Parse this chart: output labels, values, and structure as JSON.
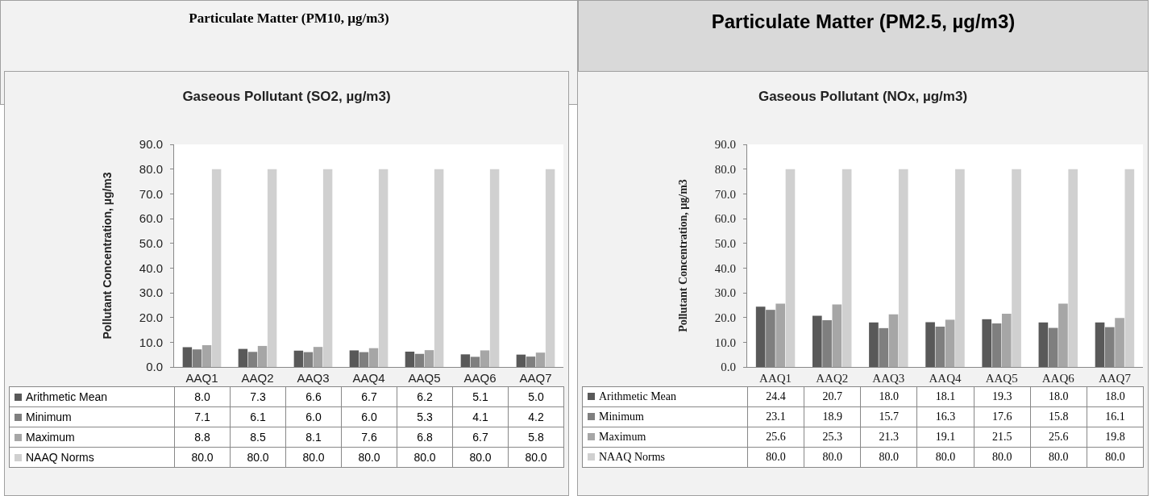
{
  "chart_data": [
    {
      "type": "other",
      "title": "Particulate Matter (PM10, µg/m3)"
    },
    {
      "type": "other",
      "title": "Particulate Matter (PM2.5, µg/m3)"
    },
    {
      "type": "bar",
      "title": "Gaseous Pollutant (SO2, µg/m3)",
      "ylabel": "Pollutant Concentration, µg/m3",
      "categories": [
        "AAQ1",
        "AAQ2",
        "AAQ3",
        "AAQ4",
        "AAQ5",
        "AAQ6",
        "AAQ7"
      ],
      "series": [
        {
          "name": "Arithmetic Mean",
          "color": "#595959",
          "values": [
            8.0,
            7.3,
            6.6,
            6.7,
            6.2,
            5.1,
            5.0
          ],
          "value_labels": [
            "8.0",
            "7.3",
            "6.6",
            "6.7",
            "6.2",
            "5.1",
            "5.0"
          ]
        },
        {
          "name": "Minimum",
          "color": "#7f7f7f",
          "values": [
            7.1,
            6.1,
            6.0,
            6.0,
            5.3,
            4.1,
            4.2
          ],
          "value_labels": [
            "7.1",
            "6.1",
            "6.0",
            "6.0",
            "5.3",
            "4.1",
            "4.2"
          ]
        },
        {
          "name": "Maximum",
          "color": "#a6a6a6",
          "values": [
            8.8,
            8.5,
            8.1,
            7.6,
            6.8,
            6.7,
            5.8
          ],
          "value_labels": [
            "8.8",
            "8.5",
            "8.1",
            "7.6",
            "6.8",
            "6.7",
            "5.8"
          ]
        },
        {
          "name": "NAAQ Norms",
          "color": "#d0d0d0",
          "values": [
            80.0,
            80.0,
            80.0,
            80.0,
            80.0,
            80.0,
            80.0
          ],
          "value_labels": [
            "80.0",
            "80.0",
            "80.0",
            "80.0",
            "80.0",
            "80.0",
            "80.0"
          ]
        }
      ],
      "ylim": [
        0,
        90
      ],
      "yticks": [
        {
          "value": 0,
          "label": "0.0"
        },
        {
          "value": 10,
          "label": "10.0"
        },
        {
          "value": 20,
          "label": "20.0"
        },
        {
          "value": 30,
          "label": "30.0"
        },
        {
          "value": 40,
          "label": "40.0"
        },
        {
          "value": 50,
          "label": "50.0"
        },
        {
          "value": 60,
          "label": "60.0"
        },
        {
          "value": 70,
          "label": "70.0"
        },
        {
          "value": 80,
          "label": "80.0"
        },
        {
          "value": 90,
          "label": "90.0"
        }
      ],
      "grid": false,
      "legend": "bottom"
    },
    {
      "type": "bar",
      "title": "Gaseous Pollutant (NOx, µg/m3)",
      "ylabel": "Pollutant Concentration, µg/m3",
      "categories": [
        "AAQ1",
        "AAQ2",
        "AAQ3",
        "AAQ4",
        "AAQ5",
        "AAQ6",
        "AAQ7"
      ],
      "series": [
        {
          "name": "Arithmetic Mean",
          "color": "#595959",
          "values": [
            24.4,
            20.7,
            18.0,
            18.1,
            19.3,
            18.0,
            18.0
          ],
          "value_labels": [
            "24.4",
            "20.7",
            "18.0",
            "18.1",
            "19.3",
            "18.0",
            "18.0"
          ]
        },
        {
          "name": "Minimum",
          "color": "#7f7f7f",
          "values": [
            23.1,
            18.9,
            15.7,
            16.3,
            17.6,
            15.8,
            16.1
          ],
          "value_labels": [
            "23.1",
            "18.9",
            "15.7",
            "16.3",
            "17.6",
            "15.8",
            "16.1"
          ]
        },
        {
          "name": "Maximum",
          "color": "#a6a6a6",
          "values": [
            25.6,
            25.3,
            21.3,
            19.1,
            21.5,
            25.6,
            19.8
          ],
          "value_labels": [
            "25.6",
            "25.3",
            "21.3",
            "19.1",
            "21.5",
            "25.6",
            "19.8"
          ]
        },
        {
          "name": "NAAQ Norms",
          "color": "#d0d0d0",
          "values": [
            80.0,
            80.0,
            80.0,
            80.0,
            80.0,
            80.0,
            80.0
          ],
          "value_labels": [
            "80.0",
            "80.0",
            "80.0",
            "80.0",
            "80.0",
            "80.0",
            "80.0"
          ]
        }
      ],
      "ylim": [
        0,
        90
      ],
      "yticks": [
        {
          "value": 0,
          "label": "0.0"
        },
        {
          "value": 10,
          "label": "10.0"
        },
        {
          "value": 20,
          "label": "20.0"
        },
        {
          "value": 30,
          "label": "30.0"
        },
        {
          "value": 40,
          "label": "40.0"
        },
        {
          "value": 50,
          "label": "50.0"
        },
        {
          "value": 60,
          "label": "60.0"
        },
        {
          "value": 70,
          "label": "70.0"
        },
        {
          "value": 80,
          "label": "80.0"
        },
        {
          "value": 90,
          "label": "90.0"
        }
      ],
      "grid": false,
      "legend": "bottom"
    }
  ]
}
